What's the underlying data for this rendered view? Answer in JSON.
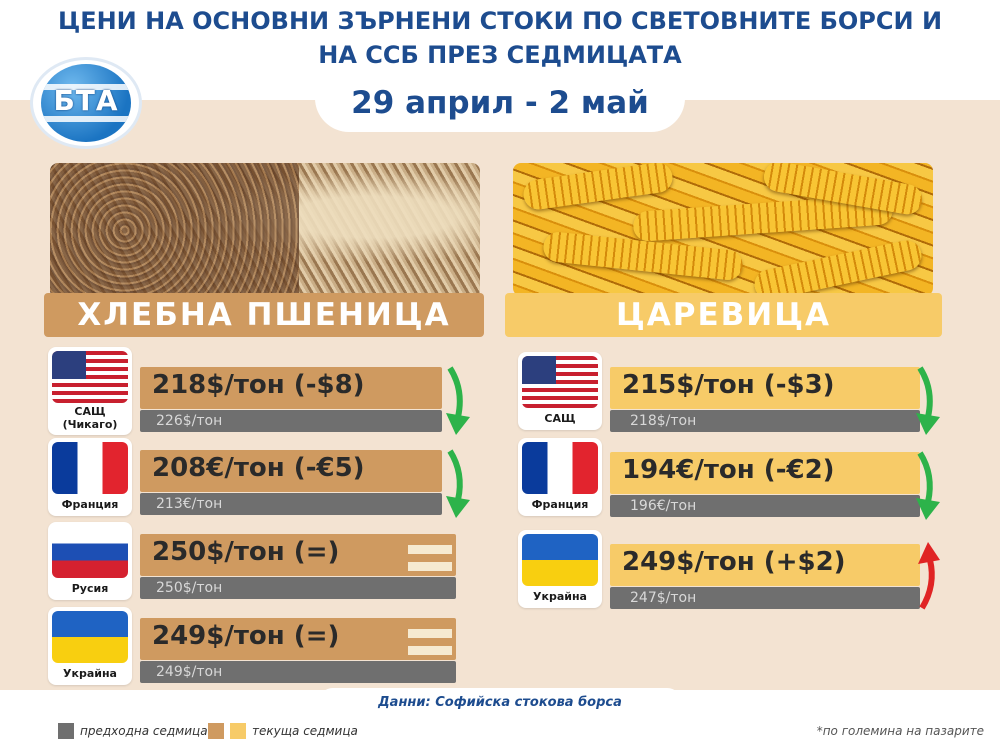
{
  "title_line1": "ЦЕНИ НА ОСНОВНИ ЗЪРНЕНИ СТОКИ ПО СВЕТОВНИТЕ БОРСИ И",
  "title_line2": "НА ССБ ПРЕЗ СЕДМИЦАТА",
  "date": "29 април - 2 май",
  "logo": "БТА",
  "colors": {
    "title": "#1d4c8f",
    "wheat": "#cf9a60",
    "corn": "#f7cb68",
    "previous": "#6f6f6f",
    "down_arrow": "#2db34a",
    "up_arrow": "#e02424"
  },
  "wheat": {
    "heading": "ХЛЕБНА ПШЕНИЦА",
    "rows": [
      {
        "flag": "us-flag",
        "country": "САЩ",
        "sub": "(Чикаго)",
        "current": "218$/тон (-$8)",
        "previous": "226$/тон",
        "trend": "down-arrow-icon"
      },
      {
        "flag": "france-flag",
        "country": "Франция",
        "sub": "",
        "current": "208€/тон (-€5)",
        "previous": "213€/тон",
        "trend": "down-arrow-icon"
      },
      {
        "flag": "russia-flag",
        "country": "Русия",
        "sub": "",
        "current": "250$/тон (=)",
        "previous": "250$/тон",
        "trend": "equal-icon"
      },
      {
        "flag": "ukraine-flag",
        "country": "Украйна",
        "sub": "",
        "current": "249$/тон (=)",
        "previous": "249$/тон",
        "trend": "equal-icon"
      }
    ]
  },
  "corn": {
    "heading": "ЦАРЕВИЦА",
    "rows": [
      {
        "flag": "us-flag",
        "country": "САЩ",
        "sub": "",
        "current": "215$/тон (-$3)",
        "previous": "218$/тон",
        "trend": "down-arrow-icon"
      },
      {
        "flag": "france-flag",
        "country": "Франция",
        "sub": "",
        "current": "194€/тон (-€2)",
        "previous": "196€/тон",
        "trend": "down-arrow-icon"
      },
      {
        "flag": "ukraine-flag",
        "country": "Украйна",
        "sub": "",
        "current": "249$/тон (+$2)",
        "previous": "247$/тон",
        "trend": "up-arrow-icon"
      }
    ]
  },
  "source": "Данни: Софийска стокова борса",
  "legend": {
    "previous": "предходна седмица",
    "current": "текуща седмица"
  },
  "note": "*по големина на пазарите"
}
